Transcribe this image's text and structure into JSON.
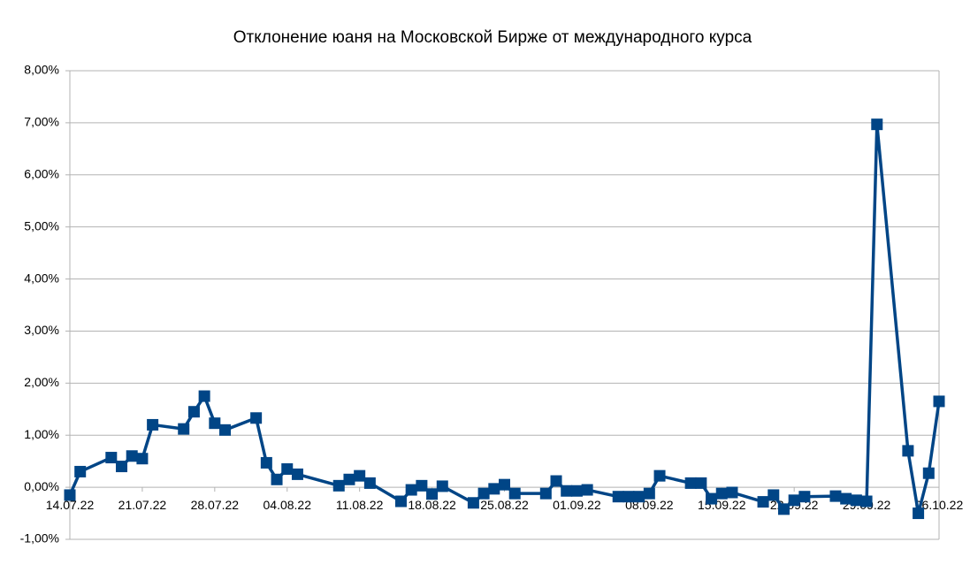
{
  "chart_data": {
    "type": "line",
    "title": "Отклонение юаня на Московской Бирже от международного курса",
    "x": [
      "14.07.22",
      "15.07.22",
      "18.07.22",
      "19.07.22",
      "20.07.22",
      "21.07.22",
      "22.07.22",
      "25.07.22",
      "26.07.22",
      "27.07.22",
      "28.07.22",
      "29.07.22",
      "01.08.22",
      "02.08.22",
      "03.08.22",
      "04.08.22",
      "05.08.22",
      "09.08.22",
      "10.08.22",
      "11.08.22",
      "12.08.22",
      "15.08.22",
      "16.08.22",
      "17.08.22",
      "18.08.22",
      "19.08.22",
      "22.08.22",
      "23.08.22",
      "24.08.22",
      "25.08.22",
      "26.08.22",
      "29.08.22",
      "30.08.22",
      "31.08.22",
      "01.09.22",
      "02.09.22",
      "05.09.22",
      "06.09.22",
      "07.09.22",
      "08.09.22",
      "09.09.22",
      "12.09.22",
      "13.09.22",
      "14.09.22",
      "15.09.22",
      "16.09.22",
      "19.09.22",
      "20.09.22",
      "21.09.22",
      "22.09.22",
      "23.09.22",
      "26.09.22",
      "27.09.22",
      "28.09.22",
      "29.09.22",
      "30.09.22",
      "03.10.22",
      "04.10.22",
      "05.10.22",
      "06.10.22"
    ],
    "values": [
      -0.15,
      0.3,
      0.57,
      0.4,
      0.6,
      0.55,
      1.2,
      1.12,
      1.45,
      1.75,
      1.23,
      1.1,
      1.33,
      0.47,
      0.15,
      0.35,
      0.25,
      0.03,
      0.15,
      0.22,
      0.08,
      -0.27,
      -0.05,
      0.03,
      -0.13,
      0.02,
      -0.3,
      -0.12,
      -0.03,
      0.05,
      -0.12,
      -0.12,
      0.12,
      -0.07,
      -0.07,
      -0.05,
      -0.18,
      -0.18,
      -0.18,
      -0.12,
      0.22,
      0.08,
      0.08,
      -0.22,
      -0.12,
      -0.1,
      -0.28,
      -0.15,
      -0.42,
      -0.25,
      -0.18,
      -0.17,
      -0.22,
      -0.25,
      -0.27,
      6.97,
      0.7,
      -0.5,
      0.27,
      1.65
    ],
    "color": "#004586",
    "xlim": [
      "14.07.22",
      "06.10.22"
    ],
    "xticks": [
      "14.07.22",
      "21.07.22",
      "28.07.22",
      "04.08.22",
      "11.08.22",
      "18.08.22",
      "25.08.22",
      "01.09.22",
      "08.09.22",
      "15.09.22",
      "22.09.22",
      "29.09.22",
      "06.10.22"
    ],
    "ylim": [
      -1,
      8
    ],
    "yticks": [
      {
        "value": -1,
        "label": "-1,00%"
      },
      {
        "value": 0,
        "label": "0,00%"
      },
      {
        "value": 1,
        "label": "1,00%"
      },
      {
        "value": 2,
        "label": "2,00%"
      },
      {
        "value": 3,
        "label": "3,00%"
      },
      {
        "value": 4,
        "label": "4,00%"
      },
      {
        "value": 5,
        "label": "5,00%"
      },
      {
        "value": 6,
        "label": "6,00%"
      },
      {
        "value": 7,
        "label": "7,00%"
      },
      {
        "value": 8,
        "label": "8,00%"
      }
    ],
    "grid": true
  }
}
